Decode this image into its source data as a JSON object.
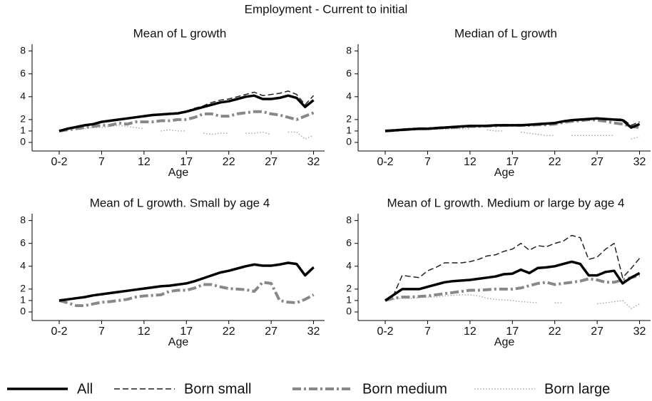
{
  "title": "Employment - Current to initial",
  "chart_data": [
    {
      "type": "line",
      "title": "Mean of L growth",
      "x_label": "Age",
      "x": [
        2,
        3,
        4,
        5,
        6,
        7,
        8,
        9,
        10,
        11,
        12,
        13,
        14,
        15,
        16,
        17,
        18,
        19,
        20,
        21,
        22,
        23,
        24,
        25,
        26,
        27,
        28,
        29,
        30,
        31,
        32
      ],
      "xlim": [
        -1.2,
        33.3
      ],
      "xticks": [
        {
          "value": 2,
          "label": "0-2"
        },
        7,
        12,
        17,
        22,
        27,
        32
      ],
      "ylim": [
        -0.75,
        8.6
      ],
      "yticks": [
        0,
        1,
        2,
        4,
        6,
        8
      ],
      "series": [
        {
          "name": "All",
          "color": "#000000",
          "line_style": "solid",
          "values": [
            1.0,
            1.2,
            1.35,
            1.5,
            1.6,
            1.8,
            1.9,
            2.0,
            2.1,
            2.2,
            2.3,
            2.4,
            2.45,
            2.5,
            2.55,
            2.7,
            2.9,
            3.1,
            3.3,
            3.5,
            3.6,
            3.8,
            4.0,
            4.1,
            3.8,
            3.8,
            3.9,
            4.1,
            3.9,
            3.1,
            3.7
          ]
        },
        {
          "name": "Born small",
          "color": "#222222",
          "line_style": "dashed",
          "values": [
            1.0,
            1.2,
            1.35,
            1.5,
            1.6,
            1.8,
            1.9,
            2.0,
            2.1,
            2.2,
            2.35,
            2.45,
            2.5,
            2.55,
            2.6,
            2.75,
            3.0,
            3.2,
            3.5,
            3.7,
            3.8,
            4.0,
            4.2,
            4.4,
            4.1,
            4.2,
            4.3,
            4.5,
            4.2,
            3.3,
            4.1
          ]
        },
        {
          "name": "Born medium",
          "color": "#888888",
          "line_style": "dashdot",
          "values": [
            1.0,
            1.1,
            1.2,
            1.3,
            1.4,
            1.5,
            1.5,
            1.7,
            1.6,
            1.8,
            1.8,
            1.8,
            1.9,
            1.9,
            2.0,
            2.0,
            2.2,
            2.5,
            2.5,
            2.3,
            2.3,
            2.5,
            2.6,
            2.7,
            2.7,
            2.5,
            2.4,
            2.2,
            2.0,
            2.3,
            2.6
          ]
        },
        {
          "name": "Born large",
          "color": "#aaaaaa",
          "line_style": "dotted",
          "values": [
            1.0,
            1.1,
            1.2,
            1.2,
            1.3,
            1.3,
            1.4,
            1.5,
            1.4,
            1.3,
            1.2,
            null,
            1.0,
            1.1,
            1.0,
            1.0,
            null,
            0.8,
            0.7,
            0.8,
            0.8,
            null,
            0.8,
            0.8,
            0.9,
            0.7,
            null,
            0.9,
            0.9,
            0.3,
            0.6
          ]
        }
      ]
    },
    {
      "type": "line",
      "title": "Median of L growth",
      "x_label": "Age",
      "x": [
        2,
        3,
        4,
        5,
        6,
        7,
        8,
        9,
        10,
        11,
        12,
        13,
        14,
        15,
        16,
        17,
        18,
        19,
        20,
        21,
        22,
        23,
        24,
        25,
        26,
        27,
        28,
        29,
        30,
        31,
        32
      ],
      "xlim": [
        -1.2,
        33.3
      ],
      "xticks": [
        {
          "value": 2,
          "label": "0-2"
        },
        7,
        12,
        17,
        22,
        27,
        32
      ],
      "ylim": [
        -0.75,
        8.6
      ],
      "yticks": [
        0,
        1,
        2,
        4,
        6,
        8
      ],
      "series": [
        {
          "name": "All",
          "color": "#000000",
          "line_style": "solid",
          "values": [
            1.0,
            1.05,
            1.1,
            1.15,
            1.2,
            1.2,
            1.25,
            1.3,
            1.35,
            1.4,
            1.45,
            1.45,
            1.45,
            1.5,
            1.5,
            1.5,
            1.5,
            1.55,
            1.6,
            1.65,
            1.7,
            1.85,
            1.95,
            2.0,
            2.05,
            2.1,
            2.05,
            2.0,
            1.95,
            1.3,
            1.6
          ]
        },
        {
          "name": "Born small",
          "color": "#222222",
          "line_style": "dashed",
          "values": [
            1.0,
            1.05,
            1.1,
            1.15,
            1.2,
            1.2,
            1.25,
            1.3,
            1.35,
            1.4,
            1.5,
            1.5,
            1.5,
            1.5,
            1.5,
            1.55,
            1.55,
            1.6,
            1.6,
            1.7,
            1.75,
            1.9,
            2.0,
            2.05,
            2.1,
            2.15,
            2.1,
            2.05,
            2.05,
            1.5,
            1.8
          ]
        },
        {
          "name": "Born medium",
          "color": "#888888",
          "line_style": "dashdot",
          "values": [
            1.0,
            1.05,
            1.1,
            1.15,
            1.2,
            1.2,
            1.25,
            1.3,
            1.3,
            1.35,
            1.4,
            1.4,
            1.45,
            1.45,
            1.5,
            1.5,
            1.5,
            1.5,
            1.55,
            1.55,
            1.6,
            1.75,
            1.85,
            1.9,
            2.0,
            1.95,
            1.85,
            1.7,
            1.6,
            1.4,
            1.3
          ]
        },
        {
          "name": "Born large",
          "color": "#aaaaaa",
          "line_style": "dotted",
          "values": [
            1.0,
            1.05,
            1.05,
            1.1,
            1.1,
            1.1,
            1.15,
            1.15,
            1.2,
            1.2,
            1.2,
            null,
            1.1,
            1.0,
            1.0,
            null,
            0.9,
            0.8,
            0.7,
            0.6,
            0.6,
            null,
            0.6,
            0.6,
            0.6,
            0.6,
            0.6,
            0.6,
            null,
            0.3,
            0.5
          ]
        }
      ]
    },
    {
      "type": "line",
      "title": "Mean of L growth. Small by age 4",
      "x_label": "Age",
      "x": [
        2,
        3,
        4,
        5,
        6,
        7,
        8,
        9,
        10,
        11,
        12,
        13,
        14,
        15,
        16,
        17,
        18,
        19,
        20,
        21,
        22,
        23,
        24,
        25,
        26,
        27,
        28,
        29,
        30,
        31,
        32
      ],
      "xlim": [
        -1.2,
        33.3
      ],
      "xticks": [
        {
          "value": 2,
          "label": "0-2"
        },
        7,
        12,
        17,
        22,
        27,
        32
      ],
      "ylim": [
        -0.75,
        8.6
      ],
      "yticks": [
        0,
        1,
        2,
        4,
        6,
        8
      ],
      "series": [
        {
          "name": "All",
          "color": "#000000",
          "line_style": "solid",
          "values": [
            1.0,
            1.1,
            1.2,
            1.3,
            1.45,
            1.55,
            1.65,
            1.75,
            1.85,
            1.95,
            2.05,
            2.15,
            2.25,
            2.3,
            2.4,
            2.5,
            2.7,
            2.95,
            3.2,
            3.45,
            3.6,
            3.8,
            4.0,
            4.15,
            4.05,
            4.05,
            4.15,
            4.3,
            4.2,
            3.2,
            3.9
          ]
        },
        {
          "name": "Born small",
          "color": "#222222",
          "line_style": "dashed",
          "values": [
            1.0,
            1.1,
            1.2,
            1.3,
            1.45,
            1.55,
            1.65,
            1.75,
            1.85,
            1.95,
            2.05,
            2.15,
            2.25,
            2.3,
            2.4,
            2.5,
            2.7,
            2.95,
            3.2,
            3.45,
            3.6,
            3.8,
            4.0,
            4.15,
            4.05,
            4.05,
            4.2,
            4.35,
            4.25,
            3.3,
            3.95
          ]
        },
        {
          "name": "Born medium",
          "color": "#888888",
          "line_style": "dashdot",
          "values": [
            1.0,
            0.8,
            0.55,
            0.55,
            0.7,
            0.85,
            0.9,
            1.0,
            1.1,
            1.3,
            1.4,
            1.45,
            1.5,
            1.8,
            1.9,
            1.9,
            2.1,
            2.4,
            2.4,
            2.2,
            2.05,
            2.0,
            1.95,
            1.8,
            2.6,
            2.5,
            1.0,
            0.85,
            0.8,
            1.1,
            1.5
          ]
        }
      ]
    },
    {
      "type": "line",
      "title": "Mean of L growth. Medium or large by age 4",
      "x_label": "Age",
      "x": [
        2,
        3,
        4,
        5,
        6,
        7,
        8,
        9,
        10,
        11,
        12,
        13,
        14,
        15,
        16,
        17,
        18,
        19,
        20,
        21,
        22,
        23,
        24,
        25,
        26,
        27,
        28,
        29,
        30,
        31,
        32
      ],
      "xlim": [
        -1.2,
        33.3
      ],
      "xticks": [
        {
          "value": 2,
          "label": "0-2"
        },
        7,
        12,
        17,
        22,
        27,
        32
      ],
      "ylim": [
        -0.75,
        8.6
      ],
      "yticks": [
        0,
        1,
        2,
        4,
        6,
        8
      ],
      "series": [
        {
          "name": "All",
          "color": "#000000",
          "line_style": "solid",
          "values": [
            1.0,
            1.5,
            2.0,
            2.0,
            2.0,
            2.2,
            2.4,
            2.6,
            2.7,
            2.75,
            2.8,
            2.9,
            3.0,
            3.1,
            3.3,
            3.35,
            3.7,
            3.4,
            3.85,
            3.9,
            4.0,
            4.2,
            4.4,
            4.2,
            3.2,
            3.2,
            3.5,
            3.6,
            2.5,
            3.0,
            3.4
          ]
        },
        {
          "name": "Born small",
          "color": "#222222",
          "line_style": "dashed",
          "values": [
            1.0,
            1.5,
            3.2,
            3.1,
            3.0,
            3.6,
            3.9,
            4.3,
            4.3,
            4.3,
            4.4,
            4.6,
            4.9,
            5.0,
            5.3,
            5.5,
            6.0,
            5.4,
            5.8,
            5.7,
            6.0,
            6.2,
            6.7,
            6.5,
            4.6,
            4.8,
            5.5,
            6.0,
            3.0,
            3.8,
            4.7
          ]
        },
        {
          "name": "Born medium",
          "color": "#888888",
          "line_style": "dashdot",
          "values": [
            1.0,
            1.2,
            1.3,
            1.3,
            1.35,
            1.4,
            1.5,
            1.6,
            1.7,
            1.8,
            1.9,
            1.9,
            1.95,
            2.0,
            2.0,
            2.0,
            2.1,
            2.3,
            2.5,
            2.6,
            2.4,
            2.5,
            2.6,
            2.7,
            2.9,
            2.8,
            2.6,
            2.6,
            2.8,
            3.0,
            3.2
          ]
        },
        {
          "name": "Born large",
          "color": "#aaaaaa",
          "line_style": "dotted",
          "values": [
            1.0,
            1.1,
            1.2,
            1.2,
            1.25,
            1.3,
            1.3,
            1.4,
            1.45,
            1.5,
            1.5,
            1.4,
            1.2,
            1.1,
            1.05,
            1.0,
            0.9,
            0.85,
            0.8,
            null,
            0.8,
            0.8,
            null,
            null,
            null,
            0.7,
            0.8,
            0.9,
            1.0,
            0.3,
            0.7
          ]
        }
      ]
    }
  ]
}
